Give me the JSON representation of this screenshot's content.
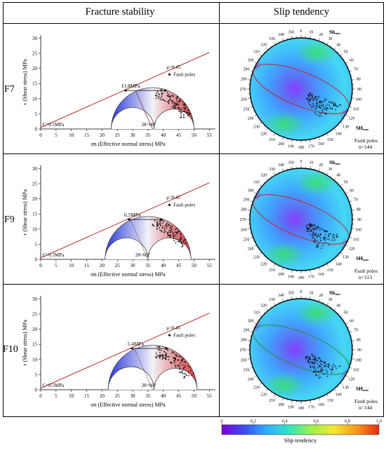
{
  "headers": {
    "left": "Fracture stability",
    "right": "Slip tendency"
  },
  "axis": {
    "xlabel": "σn (Effective normal stress) MPa",
    "ylabel": "τ (Shear stress) MPa",
    "xticks": [
      0,
      5,
      10,
      15,
      20,
      25,
      30,
      35,
      40,
      45,
      50,
      55
    ],
    "yticks": [
      0,
      5,
      10,
      15,
      20,
      25,
      30
    ],
    "xlim": [
      0,
      57
    ],
    "ylim": [
      0,
      31
    ]
  },
  "stereonet": {
    "azimuth_labels": [
      "0",
      "10",
      "20",
      "30",
      "40",
      "50",
      "60",
      "70",
      "80",
      "90",
      "100",
      "110",
      "120",
      "130",
      "140",
      "150",
      "160",
      "170",
      "180",
      "190",
      "200",
      "210",
      "220",
      "230",
      "240",
      "250",
      "260",
      "270",
      "280",
      "290",
      "300",
      "310",
      "320",
      "330",
      "340",
      "350"
    ],
    "sh_min_label": "Shmin",
    "sh_max_label": "SHmax"
  },
  "chart_data": [
    {
      "type": "scatter",
      "row_label": "F7",
      "title": "",
      "friction_label": "μ=0.45",
      "mu": 0.45,
      "cohesion": 0.5,
      "cohesion_label": "C=0.5MPa",
      "margin_label": "13.8MPa",
      "angle_label": "2θ=66°",
      "legend": "Fault poles",
      "circles": {
        "sigma3": 23,
        "sigma2": 37,
        "sigma1": 50
      },
      "slip_count_label": "n=144",
      "slip_legend": "Fault poles"
    },
    {
      "type": "scatter",
      "row_label": "F9",
      "title": "",
      "friction_label": "μ=0.45",
      "mu": 0.45,
      "cohesion": 0.5,
      "cohesion_label": "C=0.5MPa",
      "margin_label": "6.5MPa",
      "angle_label": "2θ=66°",
      "legend": "Fault poles",
      "circles": {
        "sigma3": 21,
        "sigma2": 35,
        "sigma1": 49
      },
      "slip_count_label": "n=113",
      "slip_legend": "Fault poles"
    },
    {
      "type": "scatter",
      "row_label": "F10",
      "title": "",
      "friction_label": "μ=0.45",
      "mu": 0.45,
      "cohesion": 0.5,
      "cohesion_label": "C=0.5MPa",
      "margin_label": "5.4MPa",
      "angle_label": "2θ=66°",
      "legend": "Fault poles",
      "circles": {
        "sigma3": 22,
        "sigma2": 37,
        "sigma1": 51
      },
      "slip_count_label": "n=144",
      "slip_legend": "Fault poles"
    }
  ],
  "colorbar": {
    "label": "Slip tendency",
    "ticks": [
      "0",
      "0.2",
      "0.4",
      "0.6",
      "0.8",
      "1.0"
    ],
    "colors": [
      "#7a00d8",
      "#3b4ef0",
      "#2fb0ff",
      "#31e6c0",
      "#9ef04a",
      "#f6e532",
      "#f59a1b",
      "#e82a18"
    ]
  }
}
